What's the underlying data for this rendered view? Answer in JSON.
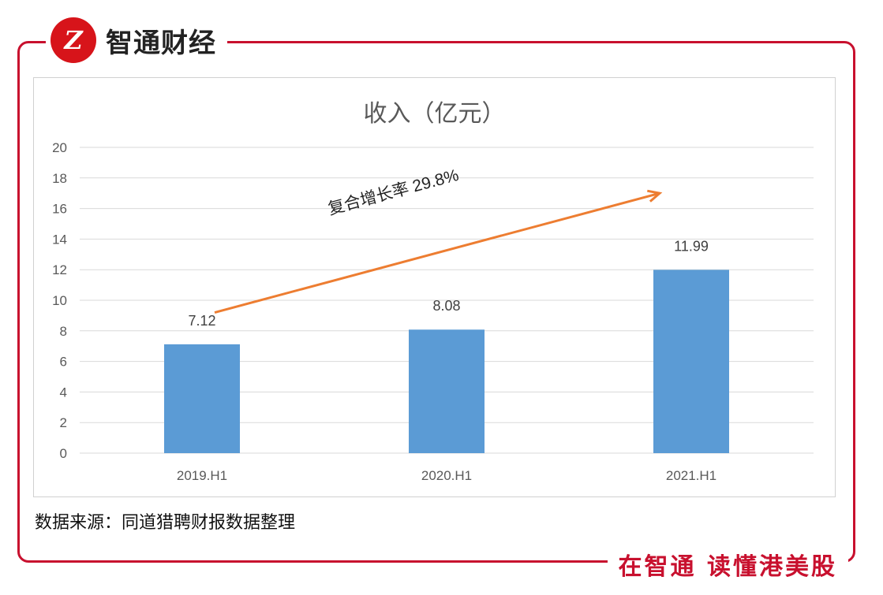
{
  "brand": {
    "logo_text": "Z",
    "name": "智通财经"
  },
  "slogan": "在智通 读懂港美股",
  "source_note": "数据来源：同道猎聘财报数据整理",
  "colors": {
    "bar": "#5b9bd5",
    "arrow": "#ed7d31",
    "frame": "#c8102e"
  },
  "chart_data": {
    "type": "bar",
    "title": "收入（亿元）",
    "categories": [
      "2019.H1",
      "2020.H1",
      "2021.H1"
    ],
    "values": [
      7.12,
      8.08,
      11.99
    ],
    "value_labels": [
      "7.12",
      "8.08",
      "11.99"
    ],
    "ylim": [
      0,
      20
    ],
    "yticks": [
      0,
      2,
      4,
      6,
      8,
      10,
      12,
      14,
      16,
      18,
      20
    ],
    "grid": true,
    "xlabel": "",
    "ylabel": "",
    "annotation": {
      "text": "复合增长率 29.8%"
    }
  }
}
